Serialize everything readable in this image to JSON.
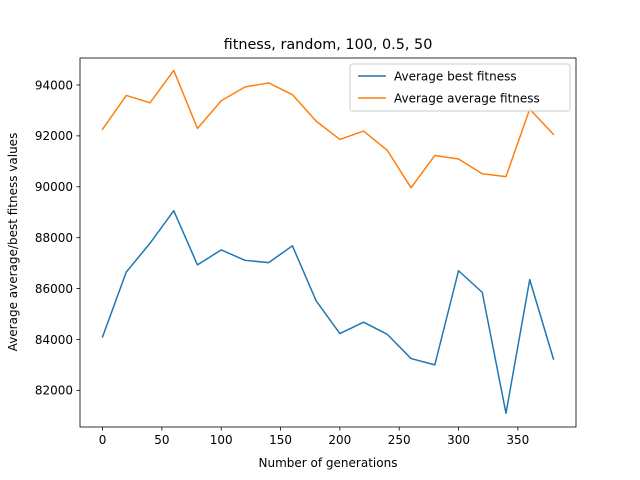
{
  "chart_data": {
    "type": "line",
    "title": "fitness, random, 100, 0.5, 50",
    "xlabel": "Number of generations",
    "ylabel": "Average average/best fitness values",
    "xlim": [
      -19,
      399
    ],
    "ylim": [
      80560,
      95060
    ],
    "xticks": [
      0,
      50,
      100,
      150,
      200,
      250,
      300,
      350
    ],
    "yticks": [
      82000,
      84000,
      86000,
      88000,
      90000,
      92000,
      94000
    ],
    "grid": false,
    "legend_position": "upper right",
    "x": [
      0,
      20,
      40,
      60,
      80,
      100,
      120,
      140,
      160,
      180,
      200,
      220,
      240,
      260,
      280,
      300,
      320,
      340,
      360,
      380
    ],
    "series": [
      {
        "name": "Average best fitness",
        "color": "#1f77b4",
        "values": [
          84100,
          86650,
          87780,
          89060,
          86930,
          87520,
          87110,
          87020,
          87680,
          85520,
          84230,
          84680,
          84200,
          83250,
          83000,
          86700,
          85850,
          81100,
          86350,
          83230
        ]
      },
      {
        "name": "Average average fitness",
        "color": "#ff7f0e",
        "values": [
          92260,
          93590,
          93300,
          94570,
          92290,
          93380,
          93920,
          94080,
          93620,
          92580,
          91860,
          92190,
          91430,
          89960,
          91230,
          91090,
          90510,
          90400,
          93050,
          92060
        ]
      }
    ]
  }
}
